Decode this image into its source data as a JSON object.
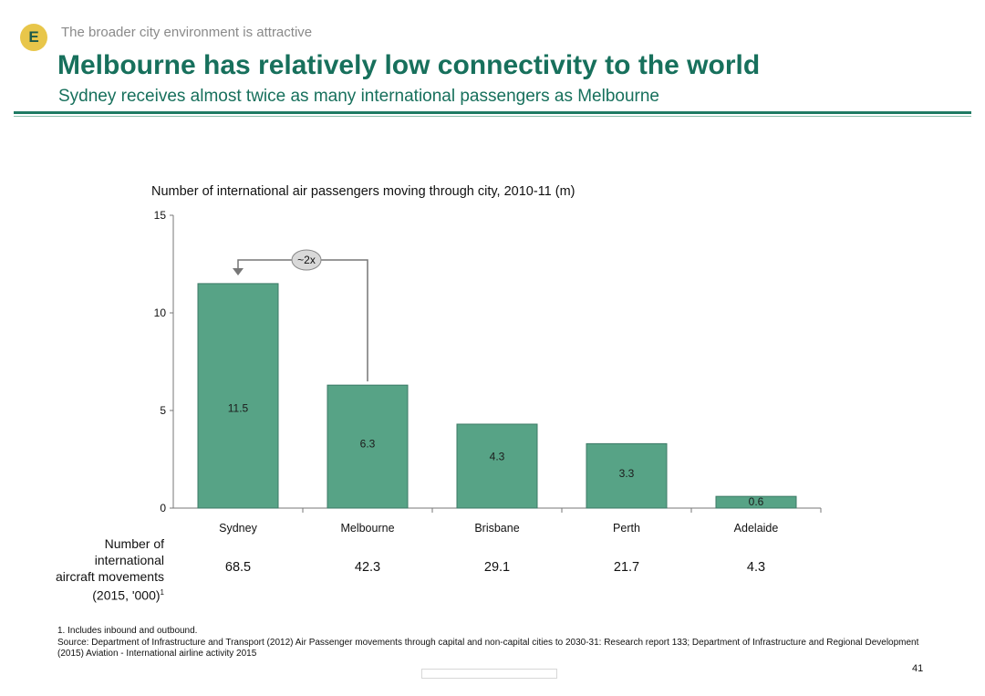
{
  "header": {
    "badge": "E",
    "kicker": "The broader city environment is attractive",
    "title": "Melbourne has relatively low connectivity to the world",
    "subtitle": "Sydney receives almost twice as many international passengers as Melbourne"
  },
  "chart_data": {
    "type": "bar",
    "title": "Number of international air passengers moving through city, 2010-11 (m)",
    "categories": [
      "Sydney",
      "Melbourne",
      "Brisbane",
      "Perth",
      "Adelaide"
    ],
    "values": [
      11.5,
      6.3,
      4.3,
      3.3,
      0.6
    ],
    "value_labels": [
      "11.5",
      "6.3",
      "4.3",
      "3.3",
      "0.6"
    ],
    "ylim": [
      0,
      15
    ],
    "yticks": [
      "0",
      "5",
      "10",
      "15"
    ],
    "grid": false,
    "bar_color": "#57a386",
    "annotation": {
      "text": "~2x",
      "from": "Melbourne",
      "to": "Sydney"
    }
  },
  "movements": {
    "label_lines": [
      "Number of",
      "international",
      "aircraft movements",
      "(2015, '000)"
    ],
    "label_sup": "1",
    "values": [
      "68.5",
      "42.3",
      "29.1",
      "21.7",
      "4.3"
    ]
  },
  "footnotes": {
    "note1": "1. Includes inbound and outbound.",
    "source": "Source: Department of Infrastructure and Transport (2012) Air Passenger movements through capital and non-capital cities to 2030-31: Research report 133; Department of Infrastructure and Regional Development (2015) Aviation - International airline activity 2015"
  },
  "page_number": "41"
}
